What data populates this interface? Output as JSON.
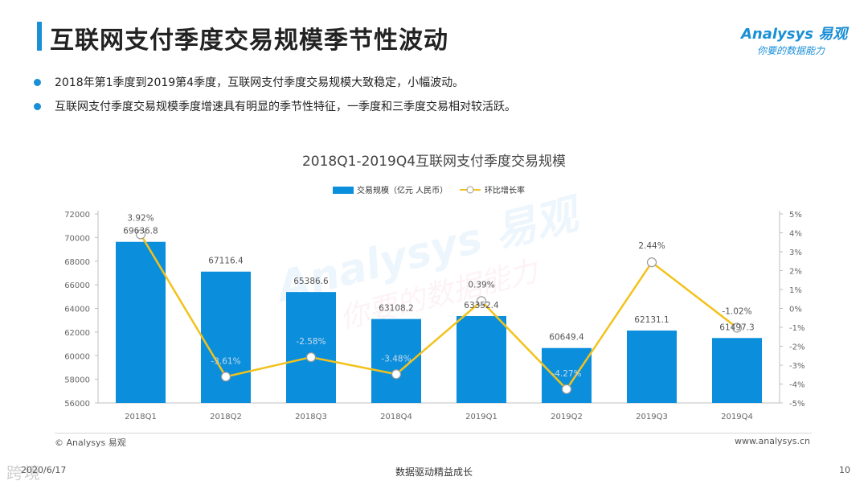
{
  "page": {
    "title": "互联网支付季度交易规模季节性波动",
    "bullets": [
      "2018年第1季度到2019第4季度，互联网支付季度交易规模大致稳定，小幅波动。",
      "互联网支付季度交易规模季度增速具有明显的季节性特征，一季度和三季度交易相对较活跃。"
    ]
  },
  "logo": {
    "main": "Analysys 易观",
    "sub": "你要的数据能力"
  },
  "watermark": {
    "main": "Analysys 易观",
    "sub": "你要的数据能力"
  },
  "footer": {
    "copyright": "© Analysys 易观",
    "website": "www.analysys.cn",
    "date": "2020/6/17",
    "slogan": "数据驱动精益成长",
    "page_number": "10",
    "corner_watermark": "跨境"
  },
  "colors": {
    "accent": "#1a8fd6",
    "bar": "#0b8fdc",
    "line": "#f2c21b"
  },
  "chart_data": {
    "type": "bar",
    "title": "2018Q1-2019Q4互联网支付季度交易规模",
    "categories": [
      "2018Q1",
      "2018Q2",
      "2018Q3",
      "2018Q4",
      "2019Q1",
      "2019Q2",
      "2019Q3",
      "2019Q4"
    ],
    "series": [
      {
        "name": "交易规模（亿元 人民币）",
        "type": "bar",
        "axis": "left",
        "values": [
          69636.8,
          67116.4,
          65386.6,
          63108.2,
          63352.4,
          60649.4,
          62131.1,
          61497.3
        ],
        "labels": [
          "69636.8",
          "67116.4",
          "65386.6",
          "63108.2",
          "63352.4",
          "60649.4",
          "62131.1",
          "61497.3"
        ]
      },
      {
        "name": "环比增长率",
        "type": "line",
        "axis": "right",
        "values": [
          3.92,
          -3.61,
          -2.58,
          -3.48,
          0.39,
          -4.27,
          2.44,
          -1.02
        ],
        "labels": [
          "3.92%",
          "-3.61%",
          "-2.58%",
          "-3.48%",
          "0.39%",
          "-4.27%",
          "2.44%",
          "-1.02%"
        ]
      }
    ],
    "y_left": {
      "min": 56000,
      "max": 72000,
      "step": 2000,
      "ticks": [
        "56000",
        "58000",
        "60000",
        "62000",
        "64000",
        "66000",
        "68000",
        "70000",
        "72000"
      ]
    },
    "y_right": {
      "min": -5,
      "max": 5,
      "step": 1,
      "ticks": [
        "-5%",
        "-4%",
        "-3%",
        "-2%",
        "-1%",
        "0%",
        "1%",
        "2%",
        "3%",
        "4%",
        "5%"
      ]
    },
    "legend": "top-center",
    "grid": false
  }
}
